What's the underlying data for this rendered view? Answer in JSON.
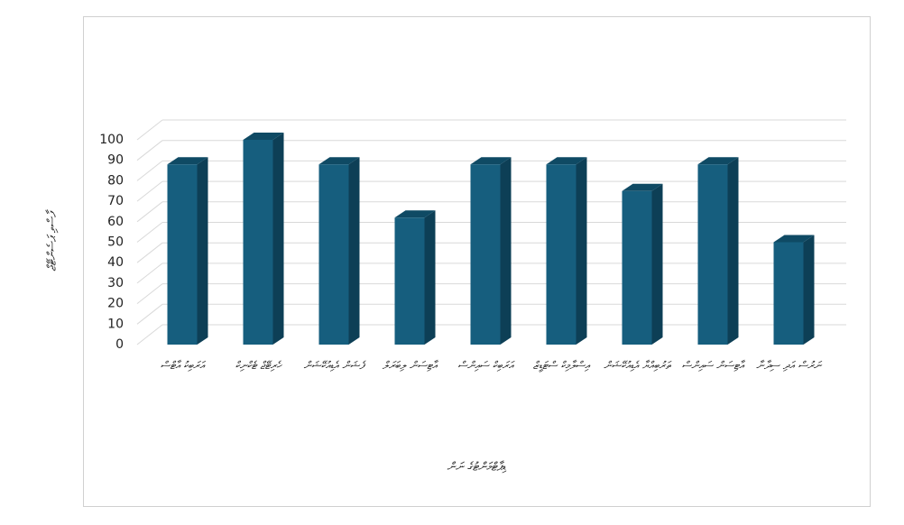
{
  "chart_data": {
    "type": "bar3d",
    "y_label": "ފާސްވި ޕަސެންޓޭޖް",
    "x_label": "ޑިޕާޓްމަންޓުގެ ނަން",
    "categories": [
      "އަރަބިކު އާޓްސް",
      "ހެރިޓޭޖް ޓެކްނިކް",
      "ފެޝަން އެޑިއުކޭޝަން",
      "އާޓިސަން ލިބަރަލް",
      "އަރަބިކް ސައިންސް",
      "އިސްލާމިކް ސްޓަޑީޒް",
      "ތަރުބިއްޔާ އެޑިއުކޭޝަން",
      "އާޓިސަން ސައިންސް",
      "ނަރުސް އަދި ސިދާނާ"
    ],
    "values": [
      88,
      100,
      88,
      62,
      88,
      88,
      75,
      88,
      50
    ],
    "color": "#165e7e",
    "ylim": [
      0,
      100
    ],
    "yticks": [
      0,
      10,
      20,
      30,
      40,
      50,
      60,
      70,
      80,
      90,
      100
    ],
    "grid": true
  }
}
